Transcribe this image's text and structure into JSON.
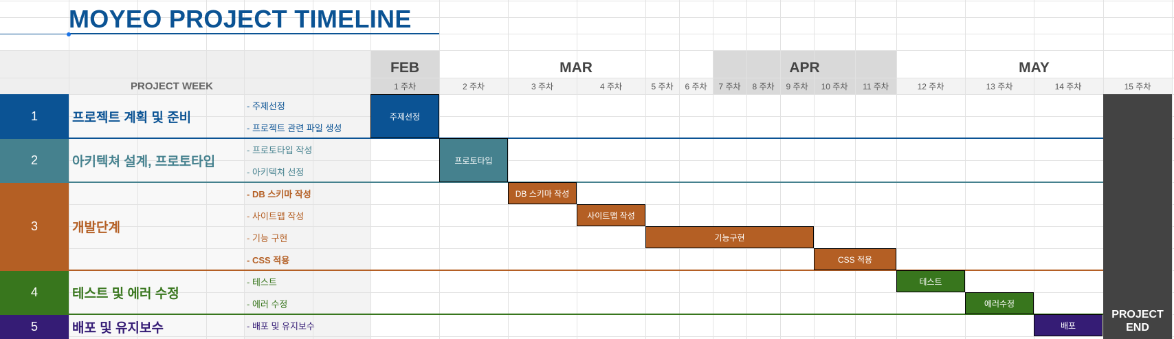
{
  "title": "MOYEO PROJECT TIMELINE",
  "project_week_label": "PROJECT WEEK",
  "months": [
    {
      "label": "FEB"
    },
    {
      "label": "MAR"
    },
    {
      "label": "APR"
    },
    {
      "label": "MAY"
    }
  ],
  "weeks": [
    "1 주차",
    "2 주차",
    "3 주차",
    "4 주차",
    "5 주차",
    "6 주차",
    "7 주차",
    "8 주차",
    "9 주차",
    "10 주차",
    "11 주차",
    "12 주차",
    "13 주차",
    "14 주차",
    "15 주차"
  ],
  "phases": [
    {
      "num": "1",
      "name": "프로젝트 계획 및 준비",
      "color": "#0b5394",
      "tasks": [
        "- 주제선정",
        "- 프로젝트 관련 파일 생성"
      ]
    },
    {
      "num": "2",
      "name": "아키텍쳐 설계, 프로토타입",
      "color": "#45818e",
      "tasks": [
        "- 프로토타입 작성",
        "- 아키텍쳐 선정"
      ]
    },
    {
      "num": "3",
      "name": "개발단계",
      "color": "#b45f24",
      "tasks": [
        "- DB 스키마 작성",
        "- 사이트맵 작성",
        "- 기능 구현",
        "- CSS 적용"
      ]
    },
    {
      "num": "4",
      "name": "테스트 및 에러 수정",
      "color": "#38761d",
      "tasks": [
        "- 테스트",
        "- 에러 수정"
      ]
    },
    {
      "num": "5",
      "name": "배포 및 유지보수",
      "color": "#351c75",
      "tasks": [
        "- 배포 및 유지보수"
      ]
    }
  ],
  "bars": [
    {
      "label": "주제선정",
      "color": "#0b5394"
    },
    {
      "label": "프로토타입",
      "color": "#45818e"
    },
    {
      "label": "DB 스키마 작성",
      "color": "#b45f24"
    },
    {
      "label": "사이트맵 작성",
      "color": "#b45f24"
    },
    {
      "label": "기능구현",
      "color": "#b45f24"
    },
    {
      "label": "CSS 적용",
      "color": "#b45f24"
    },
    {
      "label": "테스트",
      "color": "#38761d"
    },
    {
      "label": "에러수정",
      "color": "#38761d"
    },
    {
      "label": "배포",
      "color": "#351c75"
    }
  ],
  "end_label": [
    "PROJECT",
    "END"
  ],
  "colors": {
    "title": "#0b5394",
    "header_bg": "#efefef",
    "month_shade": "#d9d9d9",
    "end_column": "#434343",
    "task_bg": "#f3f3f3"
  }
}
